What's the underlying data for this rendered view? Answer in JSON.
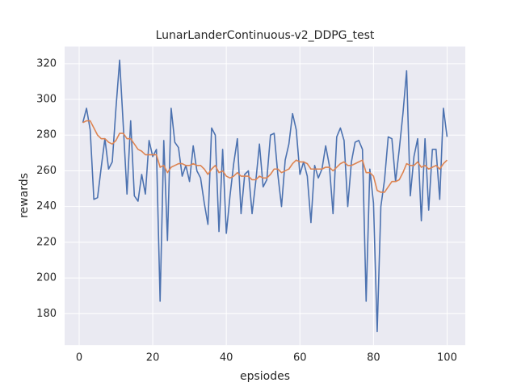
{
  "chart_data": {
    "type": "line",
    "title": "LunarLanderContinuous-v2_DDPG_test",
    "xlabel": "epsiodes",
    "ylabel": "rewards",
    "x": [
      1,
      2,
      3,
      4,
      5,
      6,
      7,
      8,
      9,
      10,
      11,
      12,
      13,
      14,
      15,
      16,
      17,
      18,
      19,
      20,
      21,
      22,
      23,
      24,
      25,
      26,
      27,
      28,
      29,
      30,
      31,
      32,
      33,
      34,
      35,
      36,
      37,
      38,
      39,
      40,
      41,
      42,
      43,
      44,
      45,
      46,
      47,
      48,
      49,
      50,
      51,
      52,
      53,
      54,
      55,
      56,
      57,
      58,
      59,
      60,
      61,
      62,
      63,
      64,
      65,
      66,
      67,
      68,
      69,
      70,
      71,
      72,
      73,
      74,
      75,
      76,
      77,
      78,
      79,
      80,
      81,
      82,
      83,
      84,
      85,
      86,
      87,
      88,
      89,
      90,
      91,
      92,
      93,
      94,
      95,
      96,
      97,
      98,
      99,
      100
    ],
    "series": [
      {
        "color": "#4c72b0",
        "values": [
          287,
          295,
          283,
          244,
          245,
          262,
          278,
          261,
          265,
          295,
          322,
          285,
          247,
          288,
          246,
          243,
          258,
          247,
          277,
          268,
          272,
          187,
          277,
          221,
          295,
          276,
          273,
          257,
          263,
          254,
          274,
          260,
          256,
          242,
          230,
          284,
          280,
          226,
          272,
          225,
          246,
          264,
          278,
          236,
          258,
          260,
          236,
          254,
          275,
          251,
          255,
          280,
          281,
          258,
          240,
          266,
          275,
          292,
          283,
          258,
          265,
          257,
          231,
          263,
          256,
          261,
          274,
          263,
          236,
          279,
          284,
          277,
          240,
          265,
          276,
          277,
          272,
          187,
          261,
          242,
          170,
          240,
          255,
          279,
          278,
          254,
          272,
          292,
          316,
          246,
          268,
          278,
          232,
          278,
          238,
          272,
          272,
          244,
          295,
          279
        ]
      },
      {
        "color": "#dd8452",
        "values": [
          287,
          288,
          288,
          284,
          280,
          278,
          278,
          276,
          275,
          277,
          281,
          281,
          278,
          278,
          275,
          272,
          271,
          269,
          269,
          269,
          269,
          262,
          263,
          259,
          262,
          263,
          264,
          264,
          263,
          263,
          264,
          263,
          263,
          261,
          258,
          261,
          263,
          259,
          260,
          257,
          256,
          257,
          259,
          257,
          257,
          257,
          255,
          255,
          257,
          256,
          256,
          258,
          261,
          261,
          259,
          260,
          261,
          264,
          266,
          265,
          265,
          264,
          261,
          261,
          261,
          261,
          262,
          262,
          260,
          262,
          264,
          265,
          263,
          263,
          264,
          265,
          266,
          259,
          259,
          257,
          249,
          248,
          248,
          251,
          254,
          254,
          255,
          259,
          264,
          263,
          263,
          265,
          262,
          263,
          261,
          262,
          263,
          261,
          264,
          266
        ]
      }
    ],
    "xlim": [
      -3.95,
      104.95
    ],
    "ylim": [
      162.4,
      329.6
    ],
    "xticks": [
      0,
      20,
      40,
      60,
      80,
      100
    ],
    "yticks": [
      180,
      200,
      220,
      240,
      260,
      280,
      300,
      320
    ],
    "grid": true
  }
}
